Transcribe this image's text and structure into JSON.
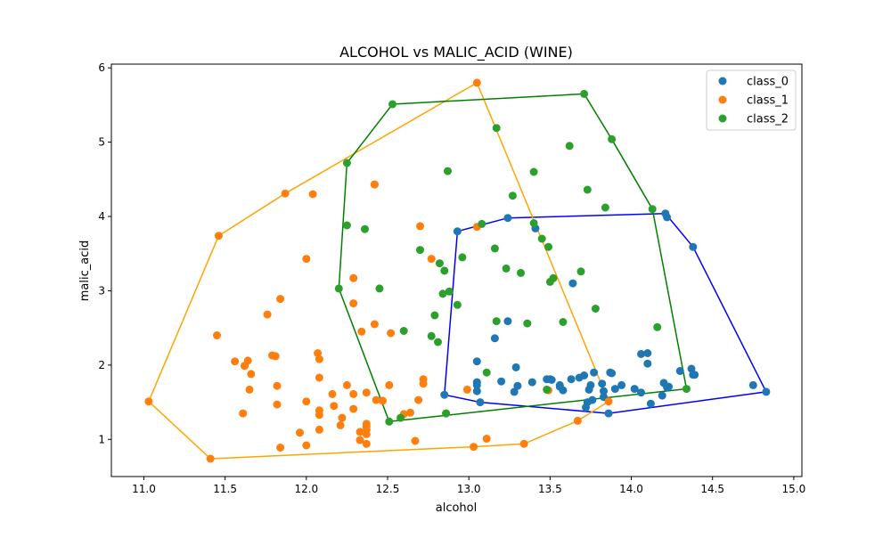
{
  "chart_data": {
    "type": "scatter",
    "title": "ALCOHOL vs MALIC_ACID (WINE)",
    "xlabel": "alcohol",
    "ylabel": "malic_acid",
    "xlim": [
      10.8,
      15.05
    ],
    "ylim": [
      0.5,
      6.05
    ],
    "xticks": [
      11.0,
      11.5,
      12.0,
      12.5,
      13.0,
      13.5,
      14.0,
      14.5,
      15.0
    ],
    "xtick_labels": [
      "11.0",
      "11.5",
      "12.0",
      "12.5",
      "13.0",
      "13.5",
      "14.0",
      "14.5",
      "15.0"
    ],
    "yticks": [
      1,
      2,
      3,
      4,
      5,
      6
    ],
    "ytick_labels": [
      "1",
      "2",
      "3",
      "4",
      "5",
      "6"
    ],
    "grid": false,
    "legend_position": "top-right",
    "series": [
      {
        "name": "class_0",
        "color": "#1f77b4",
        "hull_color": "#0000ff",
        "points": [
          [
            14.23,
            1.71
          ],
          [
            13.2,
            1.78
          ],
          [
            13.16,
            2.36
          ],
          [
            14.37,
            1.95
          ],
          [
            13.24,
            2.59
          ],
          [
            14.2,
            1.76
          ],
          [
            14.39,
            1.87
          ],
          [
            14.06,
            2.15
          ],
          [
            14.83,
            1.64
          ],
          [
            13.86,
            1.35
          ],
          [
            14.1,
            2.16
          ],
          [
            14.12,
            1.48
          ],
          [
            13.75,
            1.73
          ],
          [
            14.75,
            1.73
          ],
          [
            14.38,
            1.87
          ],
          [
            13.63,
            1.81
          ],
          [
            14.3,
            1.92
          ],
          [
            13.83,
            1.57
          ],
          [
            14.19,
            1.59
          ],
          [
            13.64,
            3.1
          ],
          [
            14.06,
            1.63
          ],
          [
            12.93,
            3.8
          ],
          [
            13.71,
            1.86
          ],
          [
            12.85,
            1.6
          ],
          [
            13.5,
            1.81
          ],
          [
            13.05,
            2.05
          ],
          [
            13.39,
            1.77
          ],
          [
            13.3,
            1.72
          ],
          [
            13.87,
            1.9
          ],
          [
            14.02,
            1.68
          ],
          [
            13.73,
            1.5
          ],
          [
            13.58,
            1.66
          ],
          [
            13.68,
            1.83
          ],
          [
            13.76,
            1.53
          ],
          [
            13.51,
            1.8
          ],
          [
            13.48,
            1.81
          ],
          [
            13.28,
            1.64
          ],
          [
            13.05,
            1.65
          ],
          [
            13.07,
            1.5
          ],
          [
            14.22,
            3.99
          ],
          [
            13.56,
            1.71
          ],
          [
            13.41,
            3.84
          ],
          [
            13.88,
            1.89
          ],
          [
            13.24,
            3.98
          ],
          [
            13.05,
            1.77
          ],
          [
            14.21,
            4.04
          ],
          [
            14.38,
            3.59
          ],
          [
            13.9,
            1.68
          ],
          [
            14.1,
            2.02
          ],
          [
            13.94,
            1.73
          ],
          [
            13.05,
            1.73
          ],
          [
            13.83,
            1.65
          ],
          [
            13.82,
            1.75
          ],
          [
            13.77,
            1.9
          ],
          [
            13.74,
            1.67
          ],
          [
            13.56,
            1.73
          ],
          [
            14.22,
            1.7
          ],
          [
            13.29,
            1.97
          ],
          [
            13.72,
            1.43
          ]
        ],
        "hull": [
          [
            12.85,
            1.6
          ],
          [
            12.93,
            3.8
          ],
          [
            13.24,
            3.98
          ],
          [
            14.21,
            4.04
          ],
          [
            14.38,
            3.59
          ],
          [
            14.83,
            1.64
          ],
          [
            13.86,
            1.35
          ],
          [
            13.07,
            1.5
          ]
        ]
      },
      {
        "name": "class_1",
        "color": "#ff7f0e",
        "hull_color": "#ffa500",
        "points": [
          [
            12.37,
            0.94
          ],
          [
            12.33,
            1.1
          ],
          [
            12.64,
            1.36
          ],
          [
            13.67,
            1.25
          ],
          [
            12.37,
            1.13
          ],
          [
            12.17,
            1.45
          ],
          [
            12.37,
            1.21
          ],
          [
            13.11,
            1.01
          ],
          [
            12.37,
            1.17
          ],
          [
            13.34,
            0.94
          ],
          [
            12.21,
            1.19
          ],
          [
            12.29,
            1.61
          ],
          [
            13.86,
            1.51
          ],
          [
            13.49,
            1.66
          ],
          [
            12.99,
            1.67
          ],
          [
            11.96,
            1.09
          ],
          [
            11.66,
            1.88
          ],
          [
            13.03,
            0.9
          ],
          [
            11.84,
            2.89
          ],
          [
            12.33,
            0.99
          ],
          [
            12.7,
            3.87
          ],
          [
            12.0,
            0.92
          ],
          [
            12.72,
            1.81
          ],
          [
            12.08,
            1.13
          ],
          [
            13.05,
            3.86
          ],
          [
            11.84,
            0.89
          ],
          [
            12.67,
            0.98
          ],
          [
            12.16,
            1.61
          ],
          [
            11.65,
            1.67
          ],
          [
            11.64,
            2.06
          ],
          [
            12.08,
            1.33
          ],
          [
            12.08,
            1.83
          ],
          [
            12.0,
            1.51
          ],
          [
            12.69,
            1.53
          ],
          [
            12.29,
            2.83
          ],
          [
            11.62,
            1.99
          ],
          [
            12.47,
            1.52
          ],
          [
            11.81,
            2.12
          ],
          [
            12.29,
            1.41
          ],
          [
            12.37,
            1.07
          ],
          [
            12.29,
            3.17
          ],
          [
            12.08,
            2.08
          ],
          [
            12.6,
            1.34
          ],
          [
            12.34,
            2.45
          ],
          [
            11.82,
            1.72
          ],
          [
            12.51,
            1.73
          ],
          [
            12.42,
            2.55
          ],
          [
            12.25,
            1.73
          ],
          [
            12.72,
            1.75
          ],
          [
            12.22,
            1.29
          ],
          [
            11.61,
            1.35
          ],
          [
            11.46,
            3.74
          ],
          [
            12.52,
            2.43
          ],
          [
            11.76,
            2.68
          ],
          [
            11.41,
            0.74
          ],
          [
            12.08,
            1.39
          ],
          [
            11.03,
            1.51
          ],
          [
            11.82,
            1.47
          ],
          [
            12.42,
            4.43
          ],
          [
            12.77,
            3.43
          ],
          [
            12.0,
            3.43
          ],
          [
            11.45,
            2.4
          ],
          [
            11.56,
            2.05
          ],
          [
            12.42,
            4.43
          ],
          [
            13.05,
            5.8
          ],
          [
            11.87,
            4.31
          ],
          [
            12.07,
            2.16
          ],
          [
            12.43,
            1.53
          ],
          [
            11.79,
            2.13
          ],
          [
            12.37,
            1.63
          ],
          [
            12.04,
            4.3
          ],
          [
            12.86,
            1.35
          ],
          [
            11.62,
            1.99
          ]
        ],
        "hull": [
          [
            11.03,
            1.51
          ],
          [
            11.46,
            3.74
          ],
          [
            11.87,
            4.31
          ],
          [
            13.05,
            5.8
          ],
          [
            13.86,
            1.51
          ],
          [
            13.67,
            1.25
          ],
          [
            13.34,
            0.94
          ],
          [
            13.03,
            0.9
          ],
          [
            11.41,
            0.74
          ]
        ]
      },
      {
        "name": "class_2",
        "color": "#2ca02c",
        "hull_color": "#008000",
        "points": [
          [
            12.86,
            1.35
          ],
          [
            12.88,
            2.99
          ],
          [
            12.81,
            2.31
          ],
          [
            12.7,
            3.55
          ],
          [
            12.51,
            1.24
          ],
          [
            12.6,
            2.46
          ],
          [
            12.25,
            4.72
          ],
          [
            12.53,
            5.51
          ],
          [
            13.49,
            3.59
          ],
          [
            12.84,
            2.96
          ],
          [
            12.93,
            2.81
          ],
          [
            13.36,
            2.56
          ],
          [
            13.52,
            3.17
          ],
          [
            13.62,
            4.95
          ],
          [
            12.25,
            3.88
          ],
          [
            13.16,
            3.57
          ],
          [
            13.88,
            5.04
          ],
          [
            12.87,
            4.61
          ],
          [
            13.32,
            3.24
          ],
          [
            13.08,
            3.9
          ],
          [
            13.5,
            3.12
          ],
          [
            12.79,
            2.67
          ],
          [
            13.11,
            1.9
          ],
          [
            13.23,
            3.3
          ],
          [
            12.58,
            1.29
          ],
          [
            13.17,
            5.19
          ],
          [
            13.84,
            4.12
          ],
          [
            12.45,
            3.03
          ],
          [
            14.34,
            1.68
          ],
          [
            13.48,
            1.67
          ],
          [
            12.36,
            3.83
          ],
          [
            13.69,
            3.26
          ],
          [
            12.85,
            3.27
          ],
          [
            12.96,
            3.45
          ],
          [
            13.78,
            2.76
          ],
          [
            13.73,
            4.36
          ],
          [
            13.45,
            3.7
          ],
          [
            12.82,
            3.37
          ],
          [
            13.58,
            2.58
          ],
          [
            13.4,
            4.6
          ],
          [
            12.2,
            3.03
          ],
          [
            12.77,
            2.39
          ],
          [
            14.16,
            2.51
          ],
          [
            13.71,
            5.65
          ],
          [
            13.4,
            3.91
          ],
          [
            13.27,
            4.28
          ],
          [
            13.17,
            2.59
          ],
          [
            14.13,
            4.1
          ]
        ],
        "hull": [
          [
            12.51,
            1.24
          ],
          [
            12.2,
            3.03
          ],
          [
            12.25,
            4.72
          ],
          [
            12.53,
            5.51
          ],
          [
            13.71,
            5.65
          ],
          [
            13.88,
            5.04
          ],
          [
            14.13,
            4.1
          ],
          [
            14.34,
            1.68
          ]
        ]
      }
    ]
  }
}
